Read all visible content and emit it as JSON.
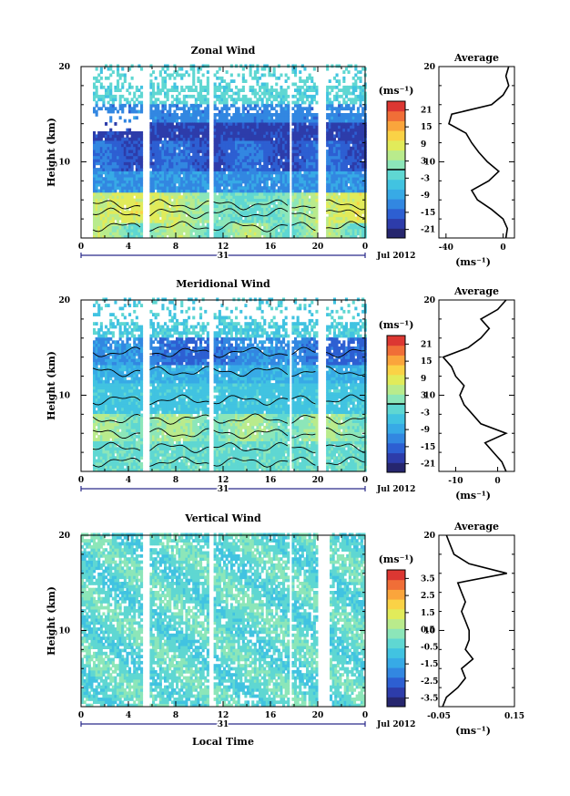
{
  "chart_data": [
    {
      "type": "heatmap",
      "title": "Zonal Wind",
      "ylabel": "Height (km)",
      "ylim": [
        2,
        20
      ],
      "y_ticks": [
        20,
        10
      ],
      "xlim": [
        0,
        24
      ],
      "x_ticks": [
        "0",
        "4",
        "8",
        "12",
        "16",
        "20",
        "0"
      ],
      "date_day": "31",
      "date_month": "Jul 2012",
      "colorbar_unit": "(ms⁻¹)",
      "colorbar_ticks": [
        "21",
        "15",
        "9",
        "3",
        "-3",
        "-9",
        "-15",
        "-21"
      ],
      "colorbar_range": [
        -24,
        24
      ],
      "data_columns": [
        [
          1,
          5.2
        ],
        [
          5.8,
          10.8
        ],
        [
          11.2,
          17.6
        ],
        [
          17.8,
          20.0
        ],
        [
          20.7,
          24
        ]
      ],
      "profile": {
        "title": "Average",
        "xlabel": "(ms⁻¹)",
        "x_ticks": [
          "-40",
          "0"
        ],
        "xlim": [
          -45,
          8
        ],
        "y_ticks": [
          20,
          10
        ],
        "heights": [
          2,
          3,
          4,
          5,
          6,
          7,
          8,
          9,
          10,
          11,
          12,
          13,
          14,
          15,
          16,
          17,
          18,
          19,
          20
        ],
        "values": [
          2,
          3,
          0,
          -8,
          -18,
          -22,
          -10,
          -3,
          -11,
          -17,
          -22,
          -26,
          -38,
          -36,
          -8,
          0,
          4,
          2,
          4
        ]
      }
    },
    {
      "type": "heatmap",
      "title": "Meridional Wind",
      "ylabel": "Height (km)",
      "ylim": [
        2,
        20
      ],
      "y_ticks": [
        20,
        10
      ],
      "xlim": [
        0,
        24
      ],
      "x_ticks": [
        "0",
        "4",
        "8",
        "12",
        "16",
        "20",
        "0"
      ],
      "date_day": "31",
      "date_month": "Jul 2012",
      "colorbar_unit": "(ms⁻¹)",
      "colorbar_ticks": [
        "21",
        "15",
        "9",
        "3",
        "-3",
        "-9",
        "-15",
        "-21"
      ],
      "colorbar_range": [
        -24,
        24
      ],
      "data_columns": [
        [
          1,
          5.2
        ],
        [
          5.8,
          10.8
        ],
        [
          11.2,
          17.6
        ],
        [
          17.8,
          20.0
        ],
        [
          20.7,
          24
        ]
      ],
      "profile": {
        "title": "Average",
        "xlabel": "(ms⁻¹)",
        "x_ticks": [
          "-10",
          "0"
        ],
        "xlim": [
          -14,
          4
        ],
        "y_ticks": [
          20,
          10
        ],
        "heights": [
          2,
          3,
          4,
          5,
          6,
          7,
          8,
          9,
          10,
          11,
          12,
          13,
          14,
          15,
          16,
          17,
          18,
          19,
          20
        ],
        "values": [
          2,
          1,
          -1,
          -3,
          2,
          -4,
          -6,
          -8,
          -9,
          -8,
          -10,
          -11,
          -13,
          -7,
          -4,
          -2,
          -4,
          0,
          2
        ]
      }
    },
    {
      "type": "heatmap",
      "title": "Vertical Wind",
      "ylabel": "Height (km)",
      "ylim": [
        2,
        20
      ],
      "y_ticks": [
        20,
        10
      ],
      "xlim": [
        0,
        24
      ],
      "x_ticks": [
        "0",
        "4",
        "8",
        "12",
        "16",
        "20",
        "0"
      ],
      "date_day": "31",
      "date_month": "Jul 2012",
      "xlabel": "Local Time",
      "colorbar_unit": "(ms⁻¹)",
      "colorbar_ticks": [
        "3.5",
        "2.5",
        "1.5",
        "0.5",
        "-0.5",
        "-1.5",
        "-2.5",
        "-3.5"
      ],
      "colorbar_range": [
        -4,
        4
      ],
      "data_columns": [
        [
          0,
          5.2
        ],
        [
          5.8,
          10.8
        ],
        [
          11.2,
          17.6
        ],
        [
          17.8,
          20.0
        ],
        [
          21.0,
          24
        ]
      ],
      "profile": {
        "title": "Average",
        "xlabel": "(ms⁻¹)",
        "x_ticks": [
          "-0.05",
          "0.15"
        ],
        "xlim": [
          -0.05,
          0.15
        ],
        "y_ticks": [
          20,
          10
        ],
        "heights": [
          2,
          3,
          4,
          5,
          6,
          7,
          8,
          9,
          10,
          11,
          12,
          13,
          14,
          15,
          16,
          17,
          18,
          19,
          20
        ],
        "values": [
          -0.04,
          -0.03,
          0.0,
          0.02,
          0.01,
          0.04,
          0.02,
          0.03,
          0.03,
          0.02,
          0.01,
          0.02,
          0.01,
          0.0,
          0.13,
          0.03,
          -0.01,
          -0.02,
          -0.03
        ]
      }
    }
  ]
}
